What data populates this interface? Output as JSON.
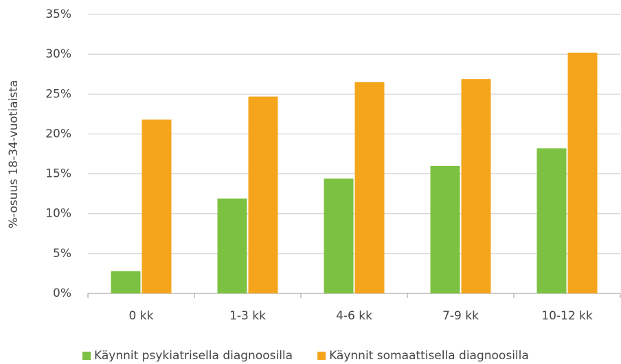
{
  "chart_data": {
    "type": "bar",
    "y_label": "%-osuus 18-34-vuotiaista",
    "categories": [
      "0 kk",
      "1-3 kk",
      "4-6 kk",
      "7-9 kk",
      "10-12 kk"
    ],
    "series": [
      {
        "name": "Käynnit psykiatrisella diagnoosilla",
        "color": "#7dc142",
        "values": [
          2.8,
          11.9,
          14.4,
          16.0,
          18.2
        ]
      },
      {
        "name": "Käynnit somaattisella diagnoosilla",
        "color": "#f5a51c",
        "values": [
          21.8,
          24.7,
          26.5,
          26.9,
          30.2
        ]
      }
    ],
    "ylim": [
      0,
      35
    ],
    "yticks": [
      {
        "value": 0,
        "label": "0%"
      },
      {
        "value": 5,
        "label": "5%"
      },
      {
        "value": 10,
        "label": "10%"
      },
      {
        "value": 15,
        "label": "15%"
      },
      {
        "value": 20,
        "label": "20%"
      },
      {
        "value": 25,
        "label": "25%"
      },
      {
        "value": 30,
        "label": "30%"
      },
      {
        "value": 35,
        "label": "35%"
      }
    ],
    "grid": true,
    "legend": "bottom"
  }
}
